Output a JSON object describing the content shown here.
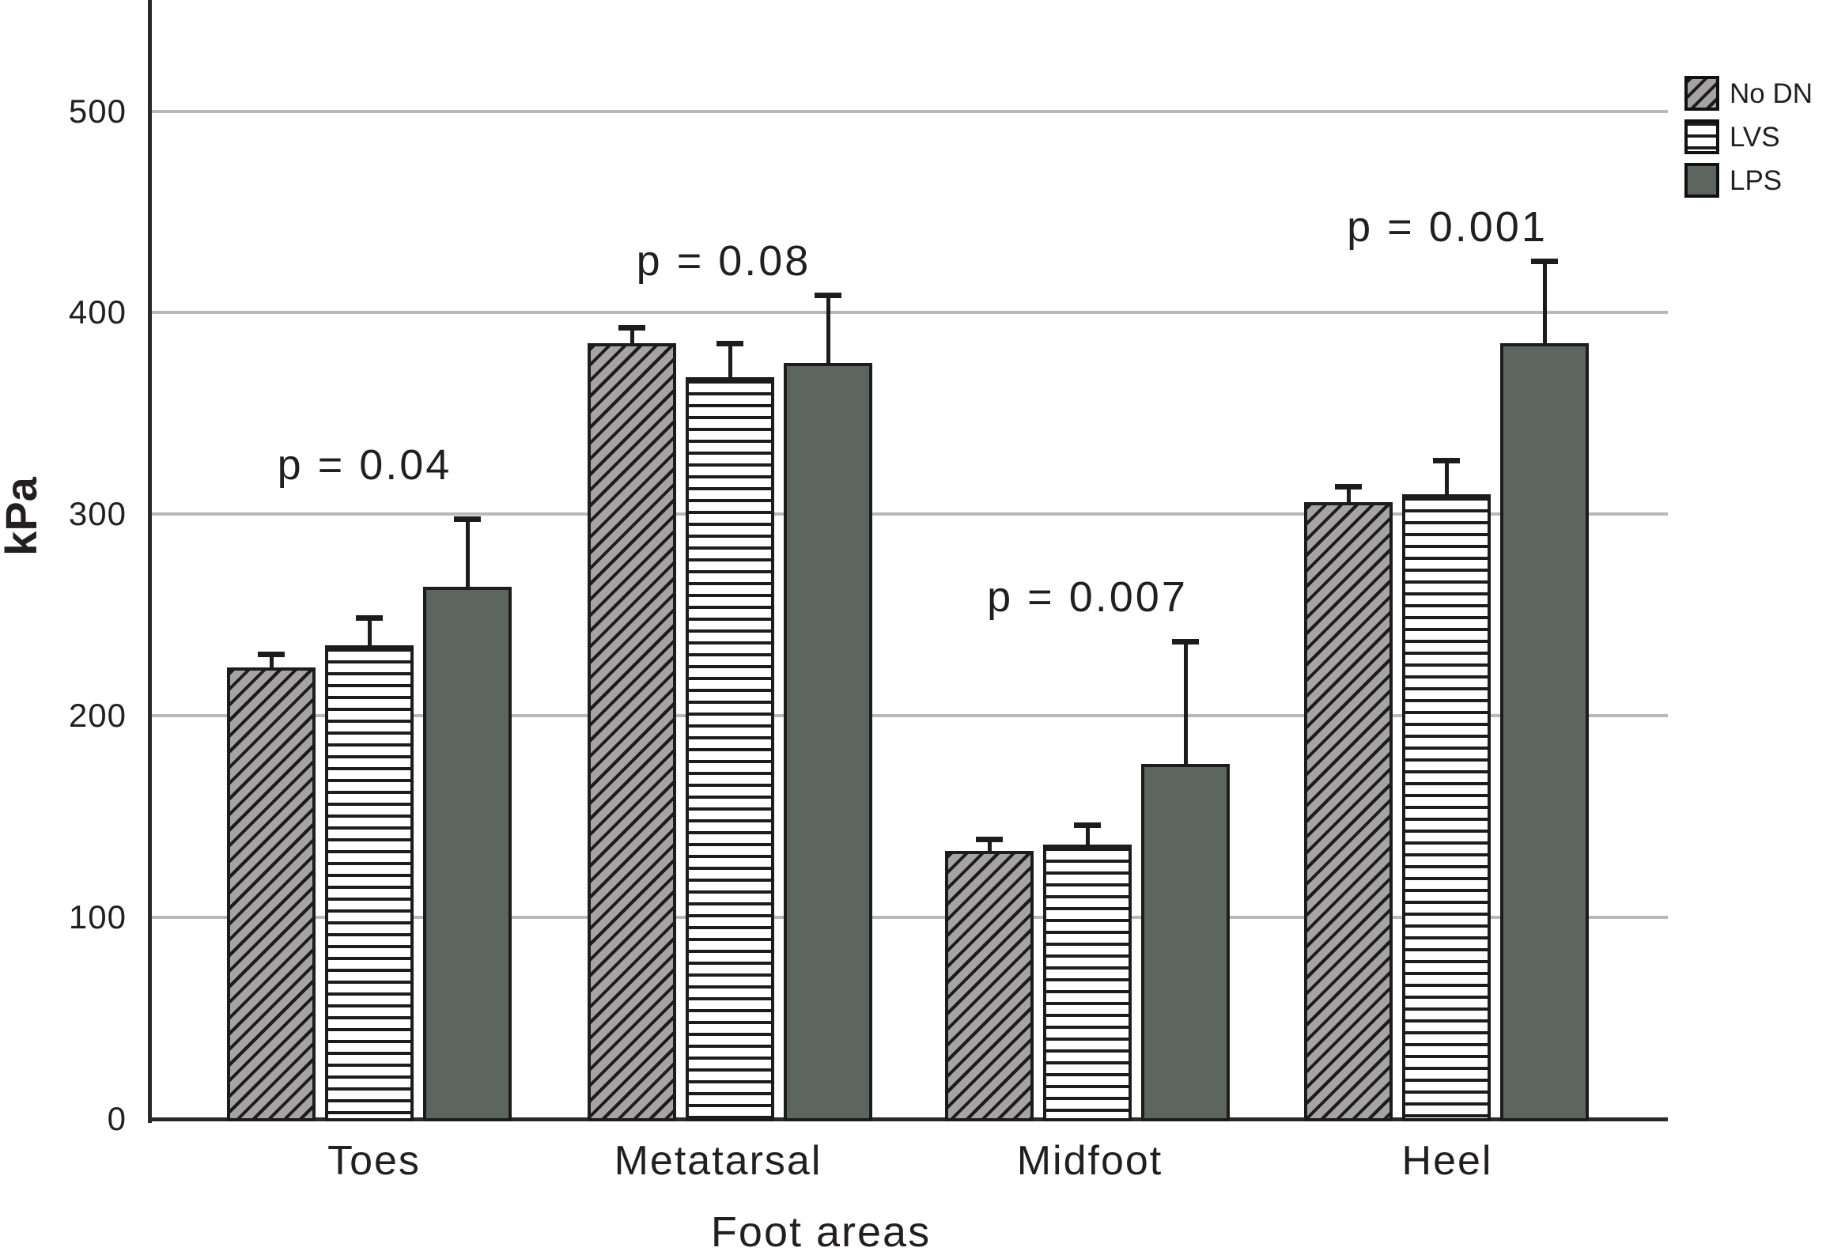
{
  "chart_data": {
    "type": "bar",
    "title": "",
    "xlabel": "Foot areas",
    "ylabel": "kPa",
    "categories": [
      "Toes",
      "Metatarsal",
      "Midfoot",
      "Heel"
    ],
    "series": [
      {
        "name": "No DN",
        "pattern": "diagonal-hatch",
        "values": [
          224,
          385,
          133,
          306
        ],
        "errors_plus": [
          6,
          7,
          5,
          7
        ]
      },
      {
        "name": "LVS",
        "pattern": "horizontal-stripes",
        "values": [
          235,
          368,
          136,
          310
        ],
        "errors_plus": [
          13,
          16,
          9,
          16
        ]
      },
      {
        "name": "LPS",
        "pattern": "solid",
        "values": [
          264,
          375,
          176,
          385
        ],
        "errors_plus": [
          33,
          33,
          60,
          40
        ]
      }
    ],
    "annotations": [
      {
        "group": "Toes",
        "label": "p = 0.04"
      },
      {
        "group": "Metatarsal",
        "label": "p = 0.08"
      },
      {
        "group": "Midfoot",
        "label": "p = 0.007"
      },
      {
        "group": "Heel",
        "label": "p = 0.001"
      }
    ],
    "yticks": [
      0,
      100,
      200,
      300,
      400,
      500
    ],
    "ylim": [
      0,
      555
    ],
    "grid": true,
    "legend_position": "top-right",
    "error_bars": "upper-only"
  },
  "colors": {
    "no_dn_fill": "#a6a3a4",
    "lps_fill": "#5c655e",
    "stripe_ink": "#1c1c1c",
    "gridline": "#b8b8b8",
    "axis": "#2a2a2a",
    "text": "#231f20"
  }
}
